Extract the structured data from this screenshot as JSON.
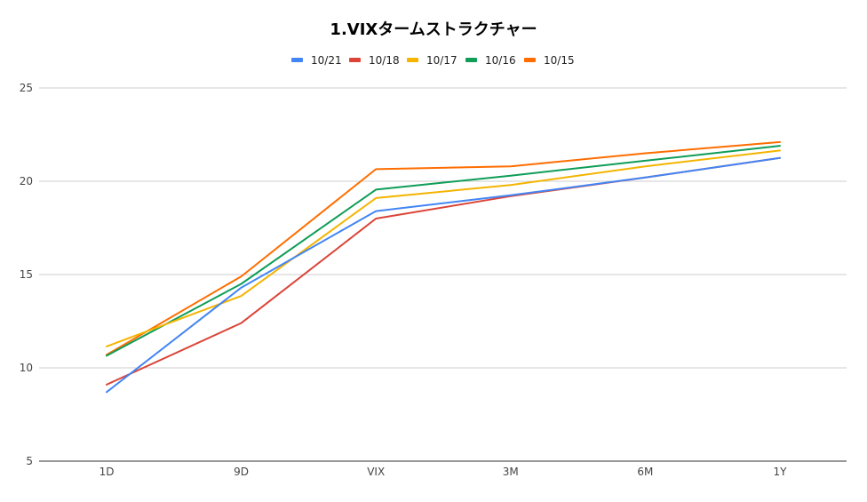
{
  "chart_data": {
    "type": "line",
    "title": "1.VIXタームストラクチャー",
    "xlabel": "",
    "ylabel": "",
    "categories": [
      "1D",
      "9D",
      "VIX",
      "3M",
      "6M",
      "1Y"
    ],
    "ylim": [
      5,
      25
    ],
    "yticks": [
      5,
      10,
      15,
      20,
      25
    ],
    "grid": true,
    "legend_position": "top",
    "series": [
      {
        "name": "10/21",
        "color": "#4285f4",
        "values": [
          8.7,
          14.3,
          18.4,
          19.25,
          20.2,
          21.25
        ]
      },
      {
        "name": "10/18",
        "color": "#db4437",
        "values": [
          9.1,
          12.4,
          18.0,
          19.2,
          20.2,
          21.25
        ]
      },
      {
        "name": "10/17",
        "color": "#f4b400",
        "values": [
          11.15,
          13.85,
          19.1,
          19.8,
          20.8,
          21.65
        ]
      },
      {
        "name": "10/16",
        "color": "#0f9d58",
        "values": [
          10.65,
          14.5,
          19.55,
          20.3,
          21.1,
          21.9
        ]
      },
      {
        "name": "10/15",
        "color": "#ff6d00",
        "values": [
          10.7,
          14.9,
          20.65,
          20.8,
          21.5,
          22.1
        ]
      }
    ]
  }
}
